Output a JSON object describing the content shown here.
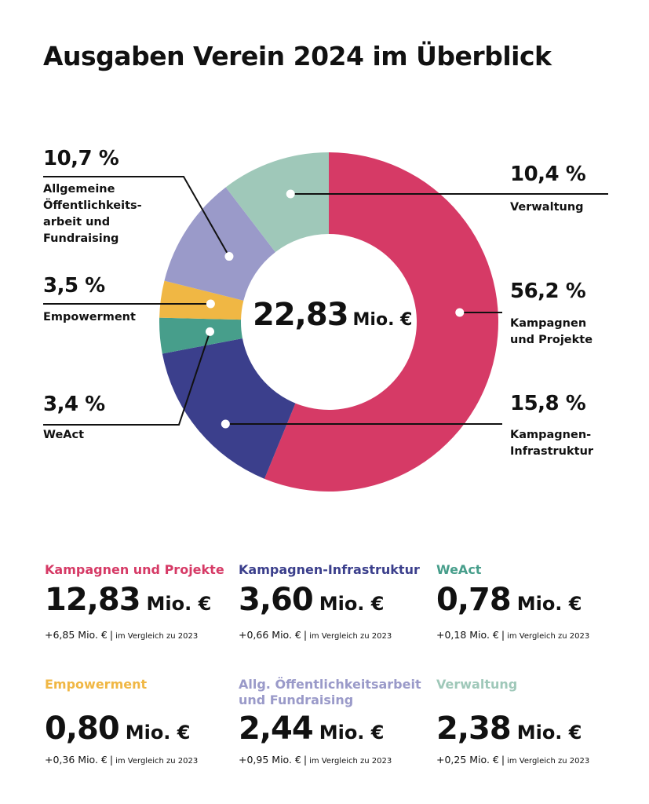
{
  "title": "Ausgaben Verein 2024 im Überblick",
  "center": {
    "value": "22,83",
    "unit": "Mio. €"
  },
  "chart_data": {
    "type": "pie",
    "title": "Ausgaben Verein 2024 im Überblick",
    "total": "22,83 Mio. €",
    "slices": [
      {
        "key": "kampagnen",
        "label": "Kampagnen und Projekte",
        "label_lines": [
          "Kampagnen",
          "und Projekte"
        ],
        "value": 56.2,
        "pct_label": "56,2 %",
        "color": "#d63a66"
      },
      {
        "key": "infra",
        "label": "Kampagnen-Infrastruktur",
        "label_lines": [
          "Kampagnen-",
          "Infrastruktur"
        ],
        "value": 15.8,
        "pct_label": "15,8 %",
        "color": "#3b3f8c"
      },
      {
        "key": "weact",
        "label": "WeAct",
        "label_lines": [
          "WeAct"
        ],
        "value": 3.4,
        "pct_label": "3,4 %",
        "color": "#479e8b"
      },
      {
        "key": "empowerment",
        "label": "Empowerment",
        "label_lines": [
          "Empowerment"
        ],
        "value": 3.5,
        "pct_label": "3,5 %",
        "color": "#f0b744"
      },
      {
        "key": "oeffentlichkeit",
        "label": "Allgemeine Öffentlichkeitsarbeit und Fundraising",
        "label_lines": [
          "Allgemeine",
          "Öffentlichkeits-",
          "arbeit und",
          "Fundraising"
        ],
        "value": 10.7,
        "pct_label": "10,7 %",
        "color": "#9a9ac9"
      },
      {
        "key": "verwaltung",
        "label": "Verwaltung",
        "label_lines": [
          "Verwaltung"
        ],
        "value": 10.4,
        "pct_label": "10,4 %",
        "color": "#9fc8b9"
      }
    ]
  },
  "cards": [
    {
      "key": "kampagnen",
      "label_lines": [
        "Kampagnen und Projekte"
      ],
      "color": "#d63a66",
      "value": "12,83",
      "unit": "Mio. €",
      "delta": "+6,85 Mio. €",
      "separator": "|",
      "compare": "im Vergleich zu 2023"
    },
    {
      "key": "infra",
      "label_lines": [
        "Kampagnen-Infrastruktur"
      ],
      "color": "#3b3f8c",
      "value": "3,60",
      "unit": "Mio. €",
      "delta": "+0,66 Mio. €",
      "separator": "|",
      "compare": "im Vergleich zu 2023"
    },
    {
      "key": "weact",
      "label_lines": [
        "WeAct"
      ],
      "color": "#479e8b",
      "value": "0,78",
      "unit": "Mio. €",
      "delta": "+0,18 Mio. €",
      "separator": "|",
      "compare": "im Vergleich zu 2023"
    },
    {
      "key": "empowerment",
      "label_lines": [
        "Empowerment"
      ],
      "color": "#f0b744",
      "value": "0,80",
      "unit": "Mio. €",
      "delta": "+0,36 Mio. €",
      "separator": "|",
      "compare": "im Vergleich zu 2023"
    },
    {
      "key": "oeffentlichkeit",
      "label_lines": [
        "Allg. Öffentlichkeitsarbeit",
        "und Fundraising"
      ],
      "color": "#9a9ac9",
      "value": "2,44",
      "unit": "Mio. €",
      "delta": "+0,95 Mio. €",
      "separator": "|",
      "compare": "im Vergleich zu 2023"
    },
    {
      "key": "verwaltung",
      "label_lines": [
        "Verwaltung"
      ],
      "color": "#9fc8b9",
      "value": "2,38",
      "unit": "Mio. €",
      "delta": "+0,25 Mio. €",
      "separator": "|",
      "compare": "im Vergleich zu 2023"
    }
  ]
}
